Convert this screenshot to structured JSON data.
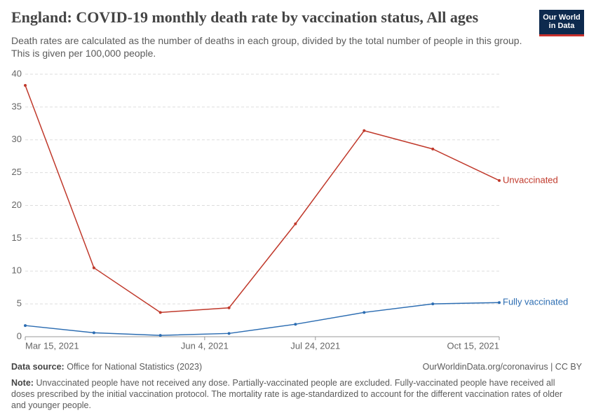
{
  "chart_data": {
    "type": "line",
    "title": "England: COVID-19 monthly death rate by vaccination status, All ages",
    "subtitle": "Death rates are calculated as the number of deaths in each group, divided by the total number of people in this group. This is given per 100,000 people.",
    "logo": [
      "Our World",
      "in Data"
    ],
    "x": [
      "2021-03-15",
      "2021-04-15",
      "2021-05-15",
      "2021-06-15",
      "2021-07-15",
      "2021-08-15",
      "2021-09-15",
      "2021-10-15"
    ],
    "xlim": [
      "2021-03-15",
      "2021-10-15"
    ],
    "xticks": [
      {
        "value": "2021-03-15",
        "label": "Mar 15, 2021"
      },
      {
        "value": "2021-06-04",
        "label": "Jun 4, 2021"
      },
      {
        "value": "2021-07-24",
        "label": "Jul 24, 2021"
      },
      {
        "value": "2021-10-15",
        "label": "Oct 15, 2021"
      }
    ],
    "ylim": [
      0,
      40
    ],
    "yticks": [
      0,
      5,
      10,
      15,
      20,
      25,
      30,
      35,
      40
    ],
    "grid": true,
    "series": [
      {
        "name": "Unvaccinated",
        "color": "#c0392b",
        "values": [
          38.3,
          10.5,
          3.7,
          4.4,
          17.2,
          31.4,
          28.6,
          23.8
        ]
      },
      {
        "name": "Fully vaccinated",
        "color": "#2c6db2",
        "values": [
          1.7,
          0.6,
          0.2,
          0.5,
          1.9,
          3.7,
          5.0,
          5.2
        ]
      }
    ],
    "source_label": "Data source:",
    "source": "Office for National Statistics (2023)",
    "url": "OurWorldinData.org/coronavirus | CC BY",
    "note_label": "Note:",
    "note": "Unvaccinated people have not received any dose. Partially-vaccinated people are excluded. Fully-vaccinated people have received all doses prescribed by the initial vaccination protocol. The mortality rate is age-standardized to account for the different vaccination rates of older and younger people."
  }
}
